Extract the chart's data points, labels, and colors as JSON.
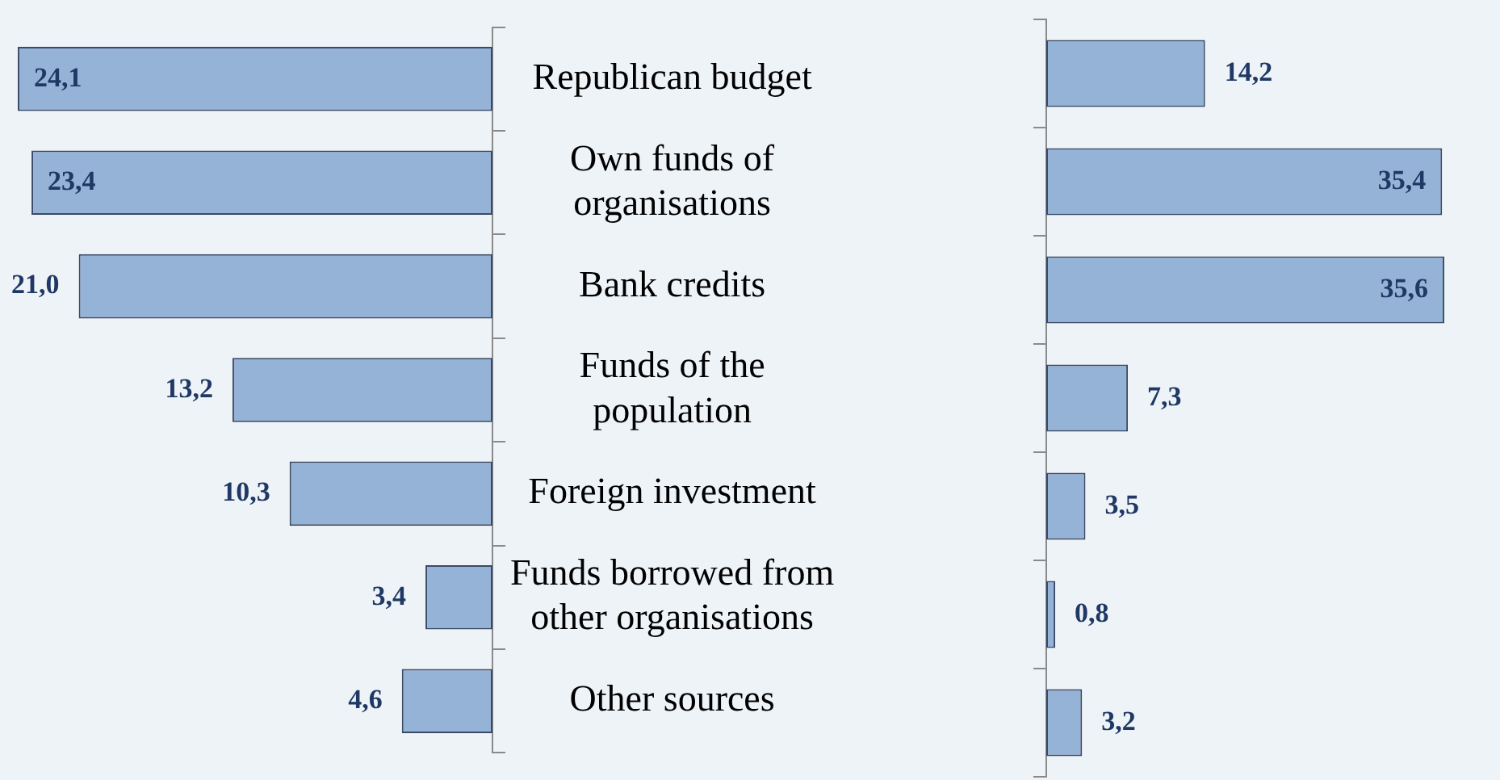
{
  "chart_data": [
    {
      "type": "bar",
      "orientation": "horizontal",
      "categories": [
        "Republican budget",
        "Own funds of organisations",
        "Bank credits",
        "Funds of the population",
        "Foreign investment",
        "Funds borrowed from other organisations",
        "Other sources"
      ],
      "series": [
        {
          "color": "#95b3d7",
          "values": [
            24.1,
            23.4,
            21.0,
            13.2,
            10.3,
            3.4,
            4.6
          ],
          "value_labels": [
            "24,1",
            "23,4",
            "21,0",
            "13,2",
            "10,3",
            "3,4",
            "4,6"
          ]
        }
      ],
      "tick_labels": "y",
      "legend": false
    },
    {
      "type": "bar",
      "orientation": "horizontal",
      "categories": [
        null,
        null,
        null,
        null,
        null,
        null,
        null
      ],
      "series": [
        {
          "color": "#95b3d7",
          "values": [
            14.2,
            35.4,
            35.6,
            7.3,
            3.5,
            0.8,
            3.2
          ],
          "value_labels": [
            "14,2",
            "35,4",
            "35,6",
            "7,3",
            "3,5",
            "0,8",
            "3,2"
          ]
        }
      ],
      "tick_labels": false,
      "legend": false
    }
  ]
}
